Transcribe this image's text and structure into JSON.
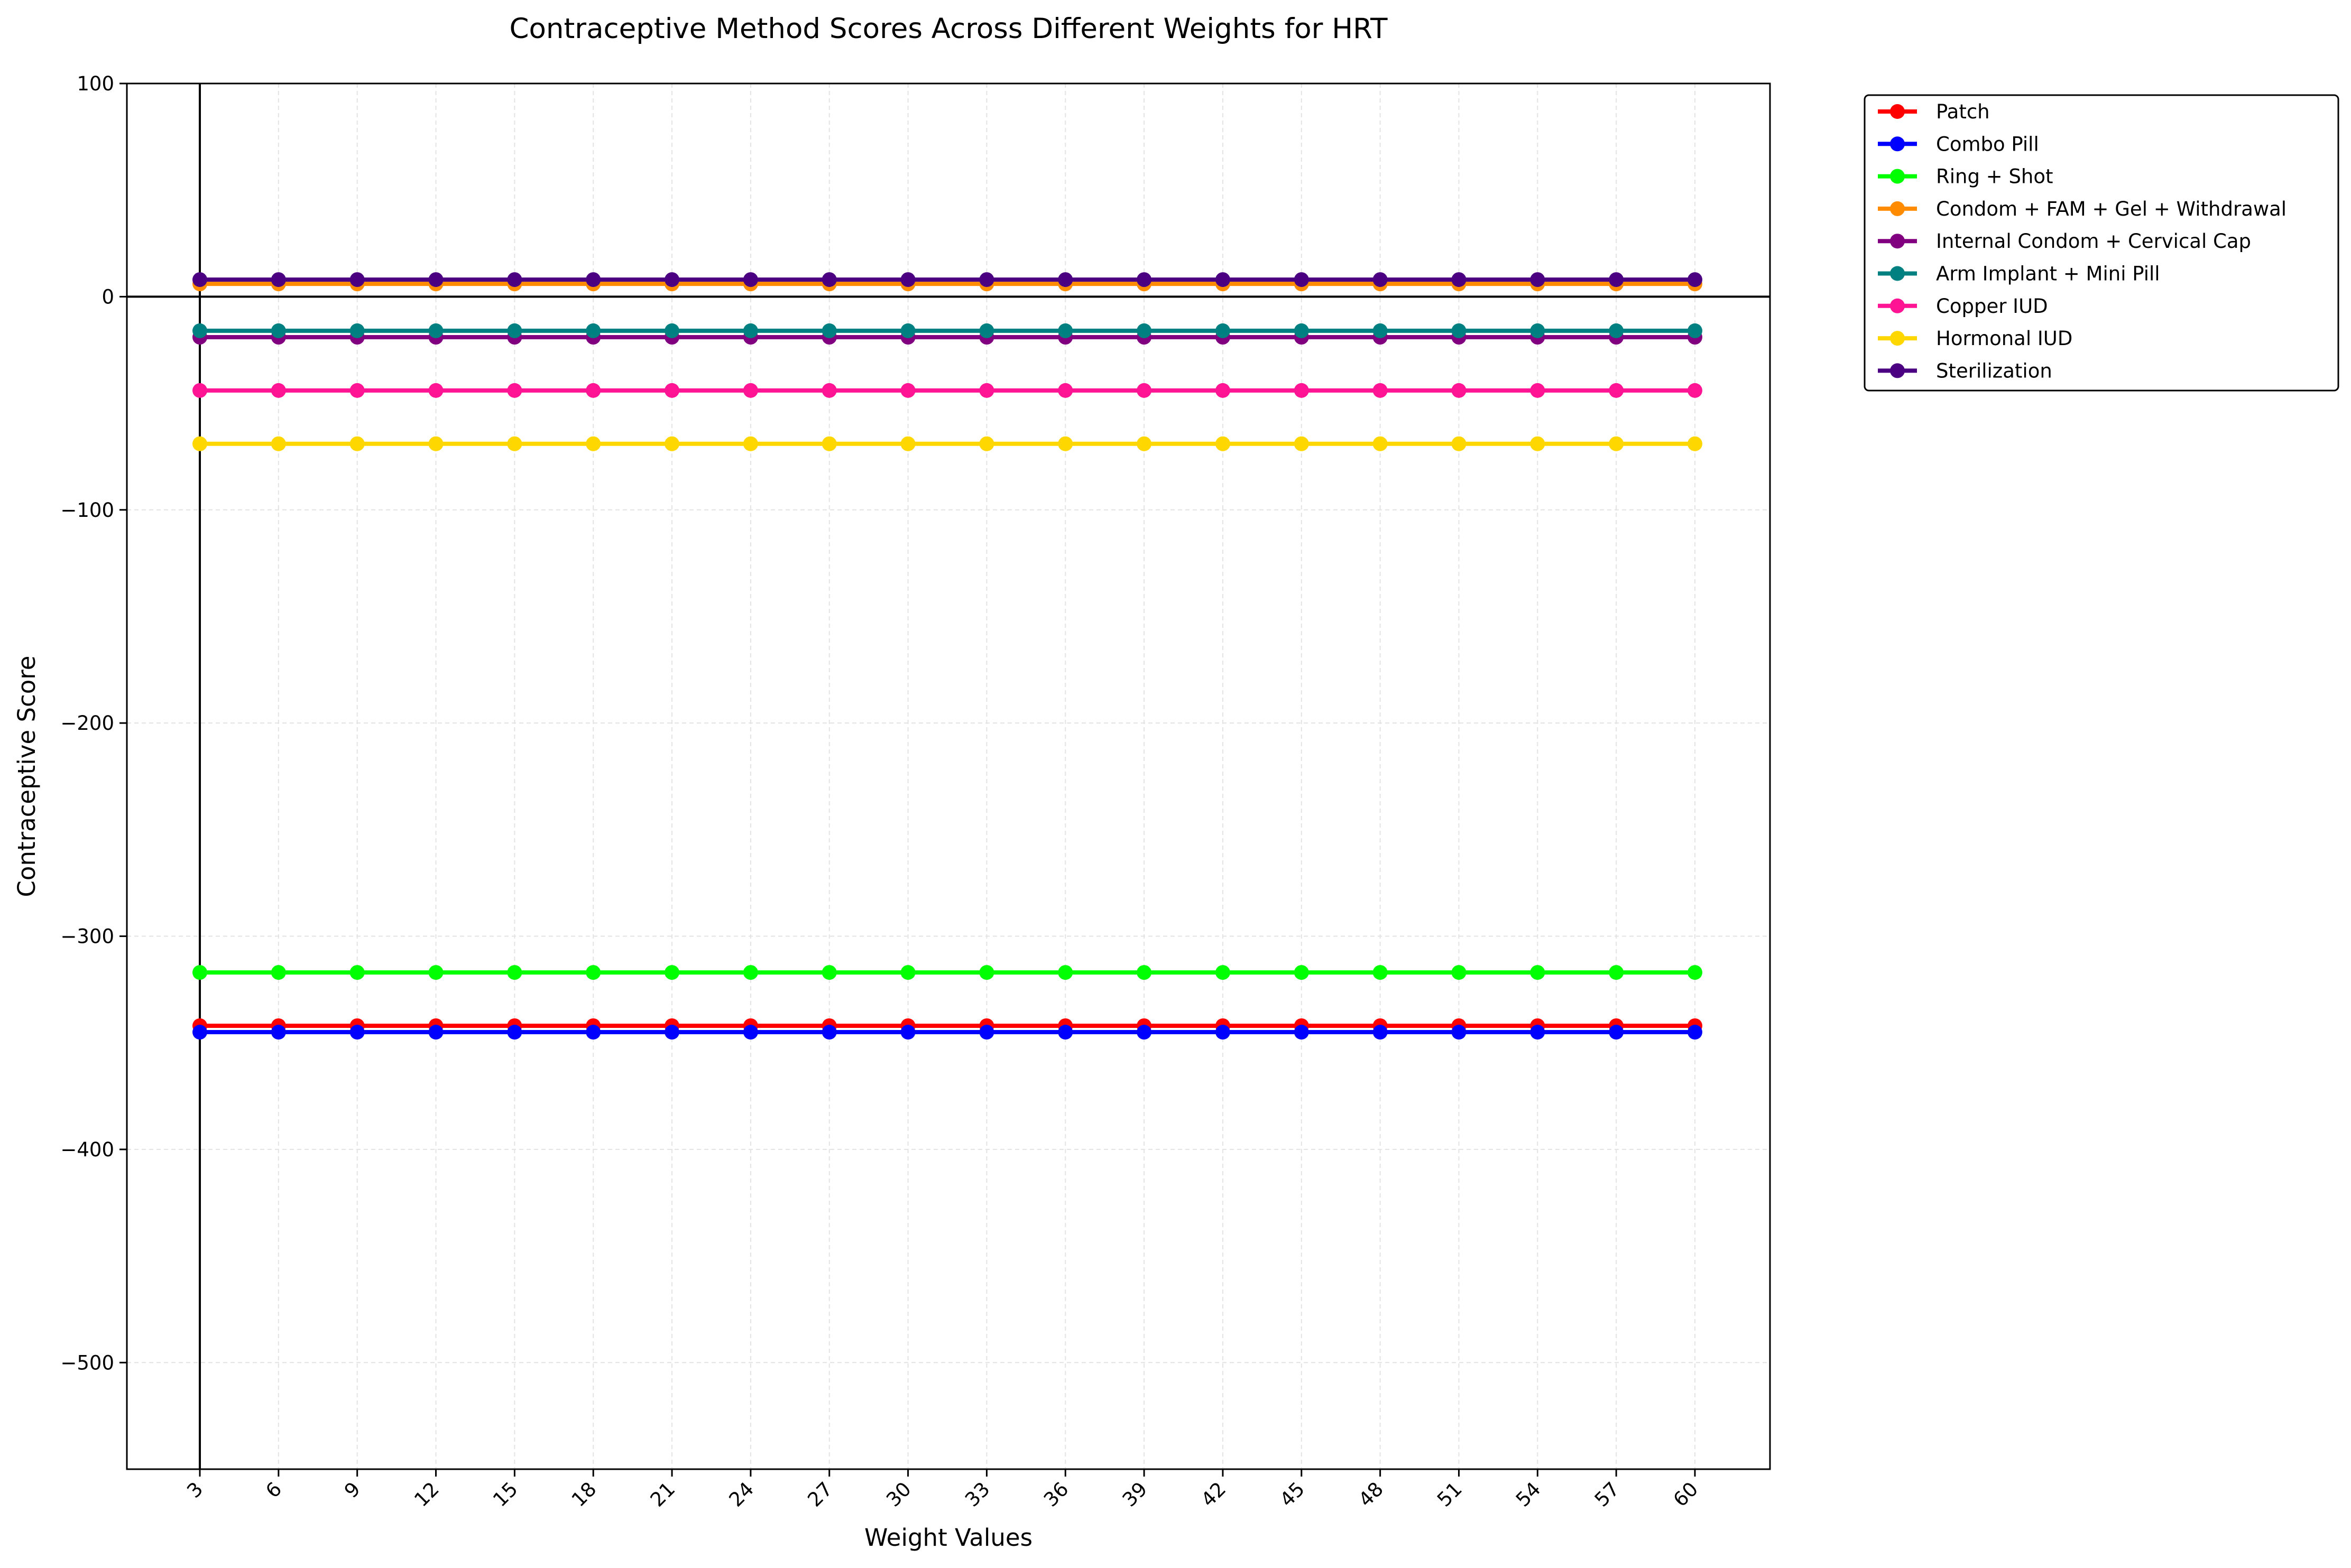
{
  "chart_data": {
    "type": "line",
    "title": "Contraceptive Method Scores Across Different Weights for HRT",
    "xlabel": "Weight Values",
    "ylabel": "Contraceptive Score",
    "x": [
      3,
      6,
      9,
      12,
      15,
      18,
      21,
      24,
      27,
      30,
      33,
      36,
      39,
      42,
      45,
      48,
      51,
      54,
      57,
      60
    ],
    "x_tick_labels": [
      "3",
      "6",
      "9",
      "12",
      "15",
      "18",
      "21",
      "24",
      "27",
      "30",
      "33",
      "36",
      "39",
      "42",
      "45",
      "48",
      "51",
      "54",
      "57",
      "60"
    ],
    "ylim": [
      -550,
      100
    ],
    "y_ticks": [
      100,
      0,
      -100,
      -200,
      -300,
      -400,
      -500
    ],
    "y_tick_labels": [
      "100",
      "0",
      "−100",
      "−200",
      "−300",
      "−400",
      "−500"
    ],
    "grid": true,
    "reference_lines": {
      "horizontal_y": 0,
      "vertical_x": 3
    },
    "legend_position": "outside-top-right",
    "series": [
      {
        "name": "Patch",
        "color": "#ff0000",
        "values": [
          -342,
          -342,
          -342,
          -342,
          -342,
          -342,
          -342,
          -342,
          -342,
          -342,
          -342,
          -342,
          -342,
          -342,
          -342,
          -342,
          -342,
          -342,
          -342,
          -342
        ]
      },
      {
        "name": "Combo Pill",
        "color": "#0000ff",
        "values": [
          -345,
          -345,
          -345,
          -345,
          -345,
          -345,
          -345,
          -345,
          -345,
          -345,
          -345,
          -345,
          -345,
          -345,
          -345,
          -345,
          -345,
          -345,
          -345,
          -345
        ]
      },
      {
        "name": "Ring + Shot",
        "color": "#00ff00",
        "values": [
          -317,
          -317,
          -317,
          -317,
          -317,
          -317,
          -317,
          -317,
          -317,
          -317,
          -317,
          -317,
          -317,
          -317,
          -317,
          -317,
          -317,
          -317,
          -317,
          -317
        ]
      },
      {
        "name": "Condom + FAM + Gel + Withdrawal",
        "color": "#ff8c00",
        "values": [
          6,
          6,
          6,
          6,
          6,
          6,
          6,
          6,
          6,
          6,
          6,
          6,
          6,
          6,
          6,
          6,
          6,
          6,
          6,
          6
        ]
      },
      {
        "name": "Internal Condom + Cervical Cap",
        "color": "#800080",
        "values": [
          -19,
          -19,
          -19,
          -19,
          -19,
          -19,
          -19,
          -19,
          -19,
          -19,
          -19,
          -19,
          -19,
          -19,
          -19,
          -19,
          -19,
          -19,
          -19,
          -19
        ]
      },
      {
        "name": "Arm Implant + Mini Pill",
        "color": "#008080",
        "values": [
          -16,
          -16,
          -16,
          -16,
          -16,
          -16,
          -16,
          -16,
          -16,
          -16,
          -16,
          -16,
          -16,
          -16,
          -16,
          -16,
          -16,
          -16,
          -16,
          -16
        ]
      },
      {
        "name": "Copper IUD",
        "color": "#ff1493",
        "values": [
          -44,
          -44,
          -44,
          -44,
          -44,
          -44,
          -44,
          -44,
          -44,
          -44,
          -44,
          -44,
          -44,
          -44,
          -44,
          -44,
          -44,
          -44,
          -44,
          -44
        ]
      },
      {
        "name": "Hormonal IUD",
        "color": "#ffd700",
        "values": [
          -69,
          -69,
          -69,
          -69,
          -69,
          -69,
          -69,
          -69,
          -69,
          -69,
          -69,
          -69,
          -69,
          -69,
          -69,
          -69,
          -69,
          -69,
          -69,
          -69
        ]
      },
      {
        "name": "Sterilization",
        "color": "#4b0082",
        "values": [
          8,
          8,
          8,
          8,
          8,
          8,
          8,
          8,
          8,
          8,
          8,
          8,
          8,
          8,
          8,
          8,
          8,
          8,
          8,
          8
        ]
      }
    ]
  }
}
